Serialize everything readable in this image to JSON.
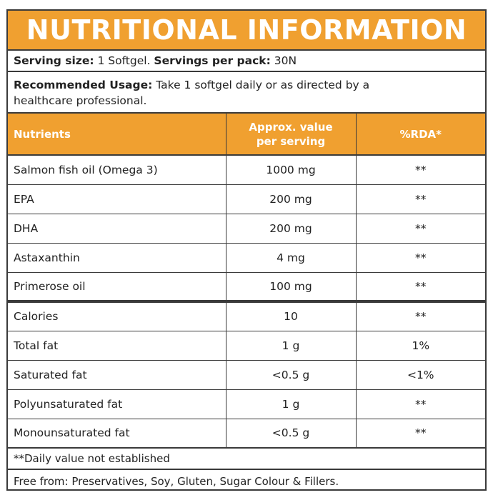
{
  "title": "NUTRITIONAL INFORMATION",
  "serving": {
    "size_label": "Serving size:",
    "size_value": "1 Softgel.",
    "per_pack_label": "Servings per pack:",
    "per_pack_value": "30N"
  },
  "usage": {
    "label": "Recommended Usage:",
    "text": "Take 1 softgel daily or as directed by a healthcare professional."
  },
  "table": {
    "headers": [
      "Nutrients",
      "Approx. value per serving",
      "%RDA*"
    ],
    "rows": [
      {
        "nutrient": "Salmon fish oil (Omega 3)",
        "value": "1000 mg",
        "rda": "**"
      },
      {
        "nutrient": "EPA",
        "value": "200 mg",
        "rda": "**"
      },
      {
        "nutrient": "DHA",
        "value": "200 mg",
        "rda": "**"
      },
      {
        "nutrient": "Astaxanthin",
        "value": "4 mg",
        "rda": "**"
      },
      {
        "nutrient": "Primerose oil",
        "value": "100 mg",
        "rda": "**"
      },
      {
        "nutrient": "Calories",
        "value": "10",
        "rda": "**"
      },
      {
        "nutrient": "Total fat",
        "value": "1 g",
        "rda": "1%"
      },
      {
        "nutrient": "Saturated fat",
        "value": "<0.5 g",
        "rda": "<1%"
      },
      {
        "nutrient": "Polyunsaturated fat",
        "value": "1 g",
        "rda": "**"
      },
      {
        "nutrient": "Monounsaturated fat",
        "value": "<0.5 g",
        "rda": "**"
      }
    ]
  },
  "footnote": "**Daily value not established",
  "free_from": "Free from: Preservatives, Soy, Gluten, Sugar Colour & Fillers.",
  "colors": {
    "accent": "#f0a030",
    "border": "#3a3a3a"
  }
}
